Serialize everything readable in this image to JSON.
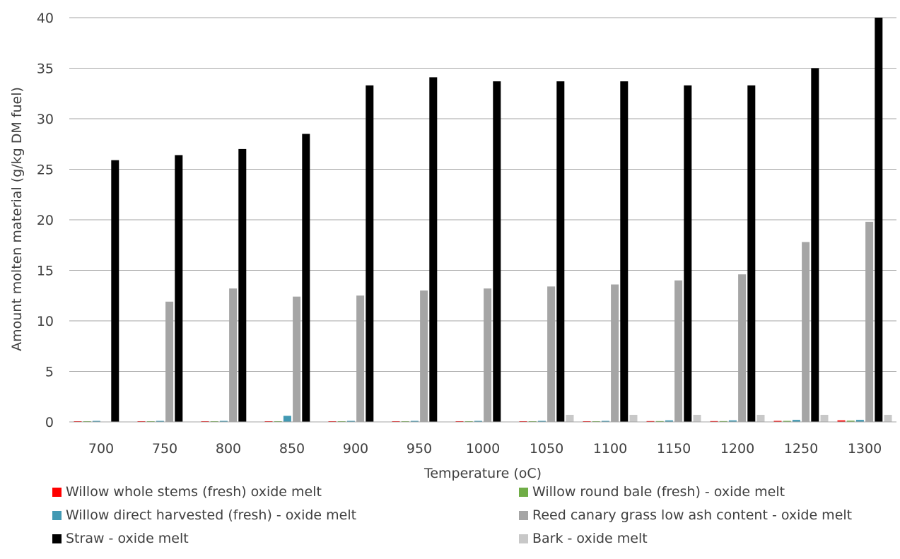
{
  "chart_data": {
    "type": "bar",
    "xlabel": "Temperature (oC)",
    "ylabel": "Amount molten material (g/kg DM fuel)",
    "ylim": [
      0,
      40
    ],
    "yticks": [
      0,
      5,
      10,
      15,
      20,
      25,
      30,
      35,
      40
    ],
    "grid": true,
    "legend_position": "bottom",
    "categories": [
      "700",
      "750",
      "800",
      "850",
      "900",
      "950",
      "1000",
      "1050",
      "1100",
      "1150",
      "1200",
      "1250",
      "1300"
    ],
    "series": [
      {
        "name": "Willow whole stems (fresh) oxide melt",
        "color": "#ff0000",
        "values": [
          0.05,
          0.05,
          0.05,
          0.05,
          0.05,
          0.05,
          0.05,
          0.05,
          0.05,
          0.08,
          0.08,
          0.1,
          0.15
        ]
      },
      {
        "name": "Willow round bale (fresh) - oxide melt",
        "color": "#70ad47",
        "values": [
          0.05,
          0.05,
          0.05,
          0.05,
          0.05,
          0.05,
          0.05,
          0.05,
          0.05,
          0.08,
          0.08,
          0.1,
          0.12
        ]
      },
      {
        "name": "Willow direct harvested (fresh) - oxide melt",
        "color": "#4299b3",
        "values": [
          0.1,
          0.1,
          0.1,
          0.6,
          0.1,
          0.1,
          0.1,
          0.1,
          0.1,
          0.15,
          0.15,
          0.2,
          0.2
        ]
      },
      {
        "name": "Reed canary grass low ash content - oxide melt",
        "color": "#a5a5a5",
        "values": [
          0,
          11.9,
          13.2,
          12.4,
          12.5,
          13.0,
          13.2,
          13.4,
          13.6,
          14.0,
          14.6,
          17.8,
          19.8
        ]
      },
      {
        "name": "Straw - oxide melt",
        "color": "#000000",
        "values": [
          25.9,
          26.4,
          27.0,
          28.5,
          33.3,
          34.1,
          33.7,
          33.7,
          33.7,
          33.3,
          33.3,
          35.0,
          40.0
        ]
      },
      {
        "name": "Bark - oxide melt",
        "color": "#c8c8c8",
        "values": [
          0,
          0,
          0,
          0,
          0,
          0,
          0,
          0.7,
          0.7,
          0.7,
          0.7,
          0.7,
          0.7
        ]
      }
    ]
  }
}
